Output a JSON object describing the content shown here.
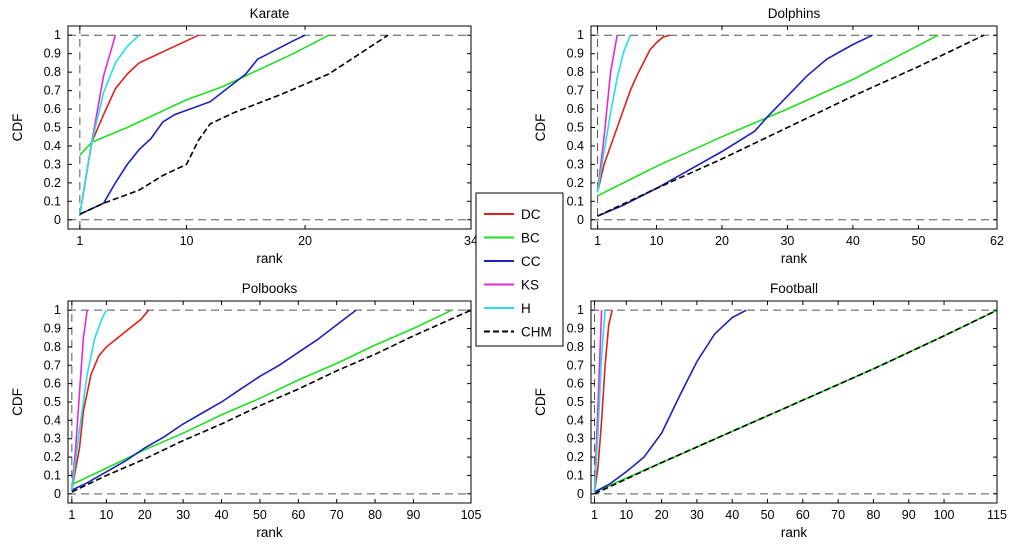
{
  "figure": {
    "y_axis_label": "CDF",
    "x_axis_label": "rank",
    "y_ticks": [
      0,
      0.1,
      0.2,
      0.3,
      0.4,
      0.5,
      0.6,
      0.7,
      0.8,
      0.9,
      1
    ],
    "y_tick_labels": [
      "0",
      "0.1",
      "0.2",
      "0.3",
      "0.4",
      "0.5",
      "0.6",
      "0.7",
      "0.8",
      "0.9",
      "1"
    ]
  },
  "legend": {
    "entries": [
      {
        "label": "DC",
        "color": "#e0201b",
        "dash": false
      },
      {
        "label": "BC",
        "color": "#1fde1f",
        "dash": false
      },
      {
        "label": "CC",
        "color": "#1a22b8",
        "dash": false
      },
      {
        "label": "KS",
        "color": "#e22ad7",
        "dash": false
      },
      {
        "label": "H",
        "color": "#22e0e6",
        "dash": false
      },
      {
        "label": "CHM",
        "color": "#000000",
        "dash": true
      }
    ]
  },
  "chart_data": [
    {
      "type": "line",
      "title": "Karate",
      "xlabel": "rank",
      "ylabel": "CDF",
      "xlim": [
        0,
        34
      ],
      "ylim": [
        -0.05,
        1.05
      ],
      "x_ticks": [
        1,
        10,
        20,
        34
      ],
      "x_tick_labels": [
        "1",
        "10",
        "20",
        "34"
      ],
      "series": [
        {
          "name": "DC",
          "x": [
            1,
            2,
            3,
            4,
            5,
            6,
            7,
            8,
            9,
            10,
            11
          ],
          "y": [
            0.03,
            0.42,
            0.57,
            0.71,
            0.79,
            0.85,
            0.88,
            0.91,
            0.94,
            0.97,
            1.0
          ]
        },
        {
          "name": "BC",
          "x": [
            1,
            2,
            5,
            10,
            13,
            16,
            19,
            22
          ],
          "y": [
            0.35,
            0.42,
            0.5,
            0.65,
            0.72,
            0.81,
            0.9,
            1.0
          ]
        },
        {
          "name": "CC",
          "x": [
            1,
            3,
            4,
            5,
            6,
            7,
            8,
            9,
            12,
            15,
            16,
            19,
            20
          ],
          "y": [
            0.03,
            0.09,
            0.2,
            0.3,
            0.38,
            0.44,
            0.53,
            0.57,
            0.64,
            0.79,
            0.87,
            0.97,
            1.0
          ]
        },
        {
          "name": "KS",
          "x": [
            1,
            2,
            3,
            4
          ],
          "y": [
            0.03,
            0.42,
            0.78,
            1.0
          ]
        },
        {
          "name": "H",
          "x": [
            1,
            2,
            3,
            4,
            5,
            6
          ],
          "y": [
            0.03,
            0.42,
            0.69,
            0.85,
            0.94,
            1.0
          ]
        },
        {
          "name": "CHM",
          "x": [
            1,
            3,
            6,
            8,
            10,
            11,
            12,
            14,
            18,
            22,
            27
          ],
          "y": [
            0.03,
            0.09,
            0.16,
            0.24,
            0.3,
            0.43,
            0.52,
            0.58,
            0.68,
            0.79,
            1.0
          ]
        }
      ]
    },
    {
      "type": "line",
      "title": "Dolphins",
      "xlabel": "rank",
      "ylabel": "CDF",
      "xlim": [
        0,
        62
      ],
      "ylim": [
        -0.05,
        1.05
      ],
      "x_ticks": [
        1,
        10,
        20,
        30,
        40,
        50,
        62
      ],
      "x_tick_labels": [
        "1",
        "10",
        "20",
        "30",
        "40",
        "50",
        "62"
      ],
      "series": [
        {
          "name": "DC",
          "x": [
            1,
            2,
            3,
            4,
            5,
            6,
            7,
            8,
            9,
            10,
            11,
            12
          ],
          "y": [
            0.15,
            0.3,
            0.4,
            0.5,
            0.6,
            0.7,
            0.78,
            0.85,
            0.92,
            0.96,
            0.99,
            1.0
          ]
        },
        {
          "name": "BC",
          "x": [
            1,
            10,
            20,
            30,
            40,
            53
          ],
          "y": [
            0.13,
            0.29,
            0.45,
            0.6,
            0.76,
            1.0
          ]
        },
        {
          "name": "CC",
          "x": [
            1,
            5,
            10,
            15,
            20,
            25,
            27,
            30,
            33,
            36,
            40,
            43
          ],
          "y": [
            0.02,
            0.08,
            0.17,
            0.27,
            0.37,
            0.48,
            0.56,
            0.67,
            0.78,
            0.87,
            0.95,
            1.0
          ]
        },
        {
          "name": "KS",
          "x": [
            1,
            2,
            3,
            4
          ],
          "y": [
            0.15,
            0.45,
            0.8,
            1.0
          ]
        },
        {
          "name": "H",
          "x": [
            1,
            2,
            3,
            4,
            5,
            6
          ],
          "y": [
            0.15,
            0.37,
            0.58,
            0.77,
            0.91,
            1.0
          ]
        },
        {
          "name": "CHM",
          "x": [
            1,
            10,
            20,
            30,
            40,
            50,
            60
          ],
          "y": [
            0.02,
            0.17,
            0.33,
            0.5,
            0.67,
            0.83,
            1.0
          ]
        }
      ]
    },
    {
      "type": "line",
      "title": "Polbooks",
      "xlabel": "rank",
      "ylabel": "CDF",
      "xlim": [
        0,
        105
      ],
      "ylim": [
        -0.05,
        1.05
      ],
      "x_ticks": [
        1,
        10,
        20,
        30,
        40,
        50,
        60,
        70,
        80,
        90,
        105
      ],
      "x_tick_labels": [
        "1",
        "10",
        "20",
        "30",
        "40",
        "50",
        "60",
        "70",
        "80",
        "90",
        "105"
      ],
      "series": [
        {
          "name": "DC",
          "x": [
            1,
            3,
            4,
            5,
            6,
            8,
            10,
            13,
            16,
            19,
            21
          ],
          "y": [
            0.02,
            0.25,
            0.45,
            0.55,
            0.65,
            0.75,
            0.8,
            0.85,
            0.9,
            0.95,
            1.0
          ]
        },
        {
          "name": "BC",
          "x": [
            1,
            10,
            20,
            30,
            40,
            50,
            60,
            70,
            80,
            90,
            100
          ],
          "y": [
            0.05,
            0.14,
            0.24,
            0.33,
            0.43,
            0.52,
            0.62,
            0.71,
            0.81,
            0.9,
            1.0
          ]
        },
        {
          "name": "CC",
          "x": [
            1,
            5,
            10,
            15,
            20,
            25,
            30,
            35,
            40,
            45,
            50,
            55,
            60,
            65,
            70,
            75
          ],
          "y": [
            0.02,
            0.06,
            0.12,
            0.18,
            0.25,
            0.31,
            0.38,
            0.44,
            0.5,
            0.57,
            0.64,
            0.7,
            0.77,
            0.84,
            0.92,
            1.0
          ]
        },
        {
          "name": "KS",
          "x": [
            1,
            2,
            3,
            4,
            5
          ],
          "y": [
            0.02,
            0.25,
            0.55,
            0.85,
            1.0
          ]
        },
        {
          "name": "H",
          "x": [
            1,
            3,
            5,
            7,
            9,
            10
          ],
          "y": [
            0.02,
            0.35,
            0.65,
            0.85,
            0.96,
            1.0
          ]
        },
        {
          "name": "CHM",
          "x": [
            1,
            10,
            20,
            30,
            40,
            50,
            60,
            70,
            80,
            90,
            105
          ],
          "y": [
            0.01,
            0.1,
            0.19,
            0.29,
            0.38,
            0.48,
            0.57,
            0.67,
            0.76,
            0.86,
            1.0
          ]
        }
      ]
    },
    {
      "type": "line",
      "title": "Football",
      "xlabel": "rank",
      "ylabel": "CDF",
      "xlim": [
        0,
        115
      ],
      "ylim": [
        -0.05,
        1.05
      ],
      "x_ticks": [
        1,
        10,
        20,
        30,
        40,
        50,
        60,
        70,
        80,
        90,
        100,
        115
      ],
      "x_tick_labels": [
        "1",
        "10",
        "20",
        "30",
        "40",
        "50",
        "60",
        "70",
        "80",
        "90",
        "100",
        "115"
      ],
      "series": [
        {
          "name": "DC",
          "x": [
            1,
            2,
            3,
            4,
            5,
            6
          ],
          "y": [
            0.01,
            0.15,
            0.4,
            0.7,
            0.92,
            1.0
          ]
        },
        {
          "name": "BC",
          "x": [
            1,
            20,
            40,
            60,
            80,
            100,
            115
          ],
          "y": [
            0.01,
            0.17,
            0.34,
            0.51,
            0.68,
            0.86,
            1.0
          ]
        },
        {
          "name": "CC",
          "x": [
            1,
            5,
            10,
            15,
            20,
            25,
            30,
            35,
            40,
            44
          ],
          "y": [
            0.01,
            0.05,
            0.12,
            0.2,
            0.33,
            0.53,
            0.72,
            0.87,
            0.96,
            1.0
          ]
        },
        {
          "name": "KS",
          "x": [
            1,
            2,
            3
          ],
          "y": [
            0.01,
            0.5,
            1.0
          ]
        },
        {
          "name": "H",
          "x": [
            1,
            2,
            3,
            4
          ],
          "y": [
            0.01,
            0.35,
            0.75,
            1.0
          ]
        },
        {
          "name": "CHM",
          "x": [
            1,
            20,
            40,
            60,
            80,
            100,
            115
          ],
          "y": [
            0.0,
            0.17,
            0.34,
            0.51,
            0.68,
            0.86,
            1.0
          ]
        }
      ]
    }
  ]
}
